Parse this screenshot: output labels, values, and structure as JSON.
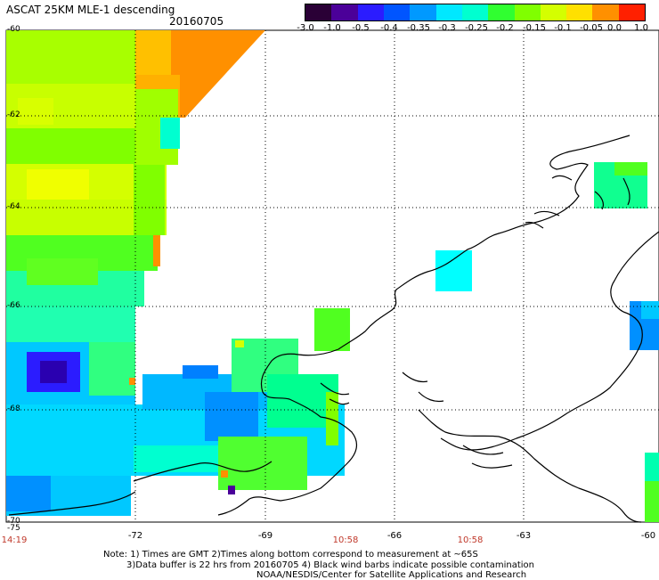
{
  "header": {
    "title": "ASCAT 25KM MLE-1 descending",
    "date": "20160705"
  },
  "colorbar": {
    "labels": [
      "-3.0",
      "-1.0",
      "-0.5",
      "-0.4",
      "-0.35",
      "-0.3",
      "-0.25",
      "-0.2",
      "-0.15",
      "-0.1",
      "-0.05",
      "0.0",
      "1.0"
    ],
    "colors": [
      "#2a0036",
      "#4b0099",
      "#2b1cff",
      "#0055ff",
      "#0099ff",
      "#00e8ff",
      "#00ffd0",
      "#30ff30",
      "#80ff00",
      "#d4ff00",
      "#ffe000",
      "#ff9000",
      "#ff2000"
    ]
  },
  "axes": {
    "lat_labels": [
      "-60",
      "-62",
      "-64",
      "-66",
      "-68",
      "-70",
      "-75"
    ],
    "lon_labels": [
      "-72",
      "-69",
      "-66",
      "-63",
      "-60"
    ],
    "time_labels": [
      "14:19",
      "10:58",
      "10:58"
    ]
  },
  "notes": {
    "line1": "Note: 1) Times are GMT 2)Times along bottom correspond to measurement at ~65S",
    "line2": "3)Data buffer is 22 hrs from 20160705 4) Black wind barbs indicate possible contamination",
    "line3": "NOAA/NESDIS/Center for Satellite Applications and Research"
  }
}
